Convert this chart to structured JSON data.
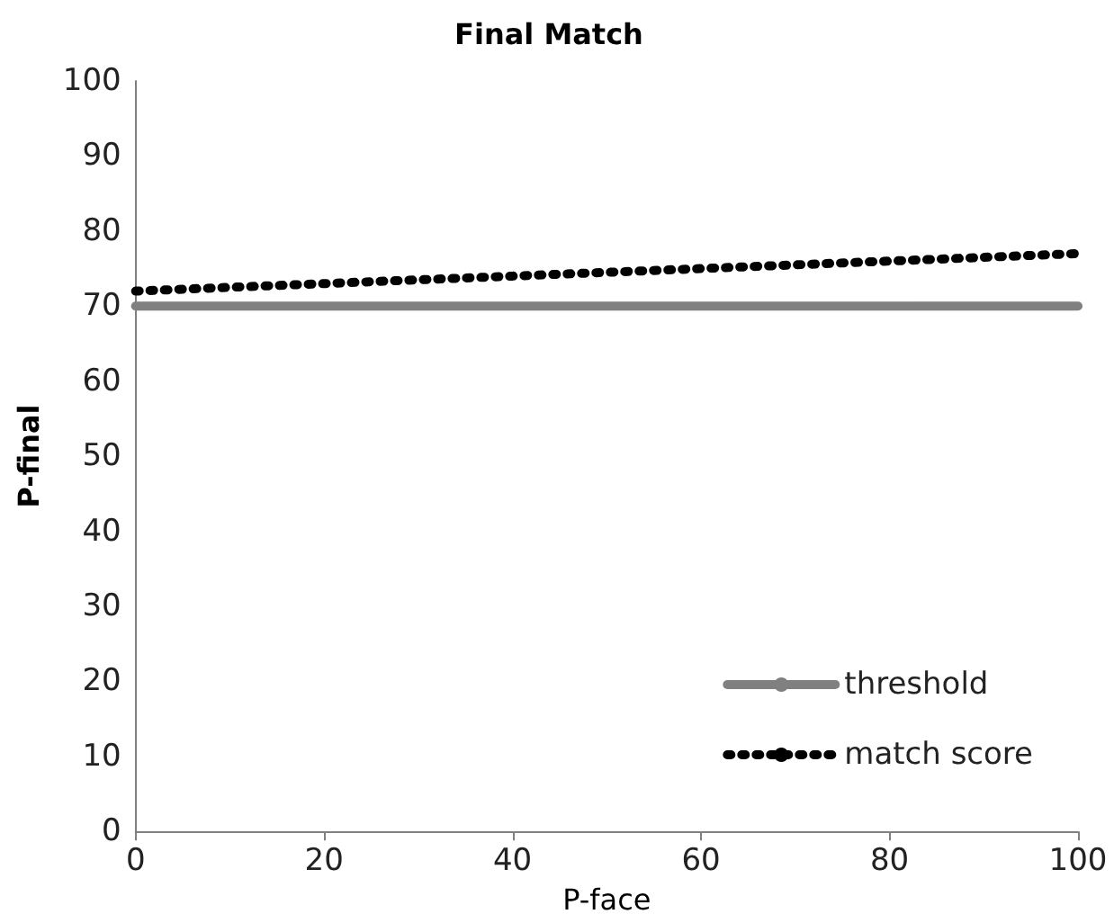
{
  "chart_data": {
    "type": "line",
    "title": "Final Match",
    "xlabel": "P-face",
    "ylabel": "P-final",
    "xlim": [
      0,
      100
    ],
    "xticks": [
      0,
      20,
      40,
      60,
      80,
      100
    ],
    "ylim": [
      0,
      100
    ],
    "yticks": [
      0,
      10,
      20,
      30,
      40,
      50,
      60,
      70,
      80,
      90,
      100
    ],
    "grid": false,
    "legend": "bottom right",
    "marker": "none",
    "series": [
      {
        "name": "threshold",
        "color": "#808080",
        "line_style": "solid",
        "x": [
          0,
          100
        ],
        "values": [
          70,
          70
        ]
      },
      {
        "name": "match score",
        "color": "#000000",
        "line_style": "dotted",
        "x": [
          0,
          10,
          20,
          30,
          40,
          50,
          60,
          70,
          80,
          90,
          100
        ],
        "values": [
          72,
          72.5,
          73,
          73.5,
          74,
          74.5,
          75,
          75.5,
          76,
          76.5,
          77
        ]
      }
    ]
  }
}
